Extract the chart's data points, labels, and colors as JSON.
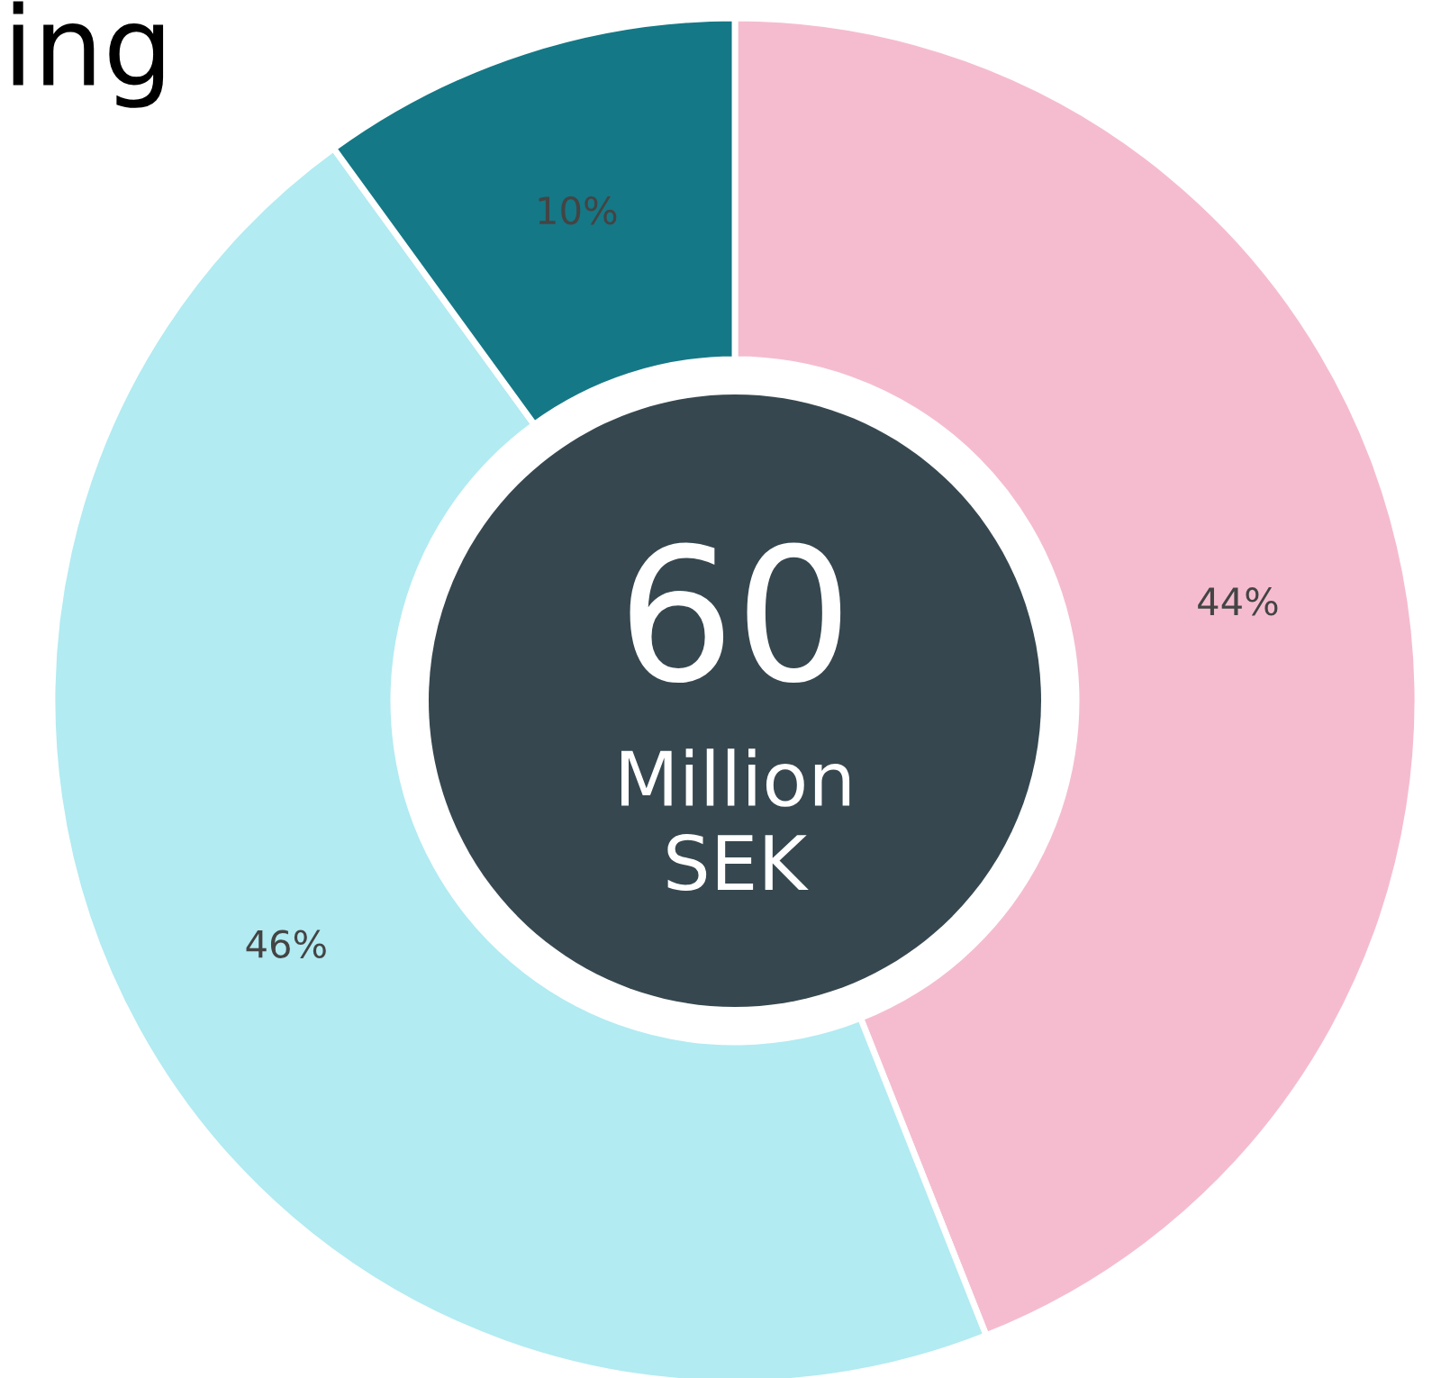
{
  "chart_data": {
    "type": "donut",
    "title": "ing",
    "categories": [
      null,
      null,
      null
    ],
    "values": [
      44,
      46,
      10
    ],
    "colors": [
      "#f5bcd0",
      "#b2ebf2",
      "#157886"
    ],
    "value_labels": [
      "44%",
      "46%",
      "10%"
    ],
    "annotations": [
      "60",
      "Million\nSEK"
    ]
  }
}
